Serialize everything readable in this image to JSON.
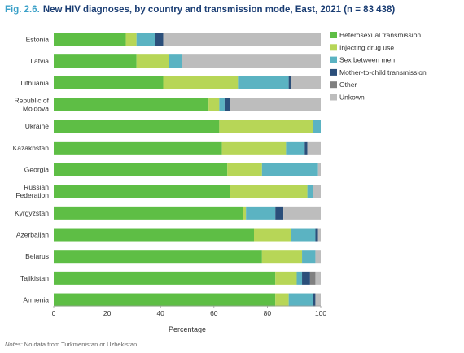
{
  "title": {
    "figure": "Fig. 2.6.",
    "text": "New HIV diagnoses, by country and transmission mode, East, 2021 (n = 83 438)"
  },
  "note": {
    "label": "Notes:",
    "text": "No data from Turkmenistan or Uzbekistan."
  },
  "chart_data": {
    "type": "bar",
    "orientation": "horizontal",
    "stacked": true,
    "title": "New HIV diagnoses, by country and transmission mode, East, 2021 (n = 83 438)",
    "xlabel": "Percentage",
    "ylabel": "",
    "xlim": [
      0,
      100
    ],
    "xticks": [
      0,
      20,
      40,
      60,
      80,
      100
    ],
    "grid": false,
    "legend_position": "top-right",
    "categories": [
      "Estonia",
      "Latvia",
      "Lithuania",
      "Republic of Moldova",
      "Ukraine",
      "Kazakhstan",
      "Georgia",
      "Russian Federation",
      "Kyrgyzstan",
      "Azerbaijan",
      "Belarus",
      "Tajikistan",
      "Armenia"
    ],
    "category_display": [
      [
        "Estonia"
      ],
      [
        "Latvia"
      ],
      [
        "Lithuania"
      ],
      [
        "Republic of",
        "Moldova"
      ],
      [
        "Ukraine"
      ],
      [
        "Kazakhstan"
      ],
      [
        "Georgia"
      ],
      [
        "Russian",
        "Federation"
      ],
      [
        "Kyrgyzstan"
      ],
      [
        "Azerbaijan"
      ],
      [
        "Belarus"
      ],
      [
        "Tajikistan"
      ],
      [
        "Armenia"
      ]
    ],
    "series": [
      {
        "name": "Heterosexual transmission",
        "color": "#5ebe45",
        "values": [
          27,
          31,
          41,
          58,
          62,
          63,
          65,
          66,
          71,
          75,
          78,
          83,
          83
        ]
      },
      {
        "name": "Injecting drug use",
        "color": "#b7d657",
        "values": [
          4,
          12,
          28,
          4,
          35,
          24,
          13,
          29,
          1,
          14,
          15,
          8,
          5
        ]
      },
      {
        "name": "Sex between men",
        "color": "#5bb3c2",
        "values": [
          7,
          5,
          19,
          2,
          3,
          7,
          21,
          2,
          11,
          9,
          5,
          2,
          9
        ]
      },
      {
        "name": "Mother-to-child transmission",
        "color": "#2b4f7a",
        "values": [
          3,
          0,
          1,
          2,
          0,
          1,
          0,
          0,
          3,
          1,
          0,
          3,
          1
        ]
      },
      {
        "name": "Other",
        "color": "#808080",
        "values": [
          0,
          0,
          0,
          0,
          0,
          0,
          0,
          0,
          0,
          0,
          0,
          2,
          0
        ]
      },
      {
        "name": "Unkown",
        "color": "#bdbdbd",
        "values": [
          59,
          52,
          11,
          34,
          0,
          5,
          1,
          3,
          14,
          1,
          2,
          2,
          2
        ]
      }
    ]
  }
}
